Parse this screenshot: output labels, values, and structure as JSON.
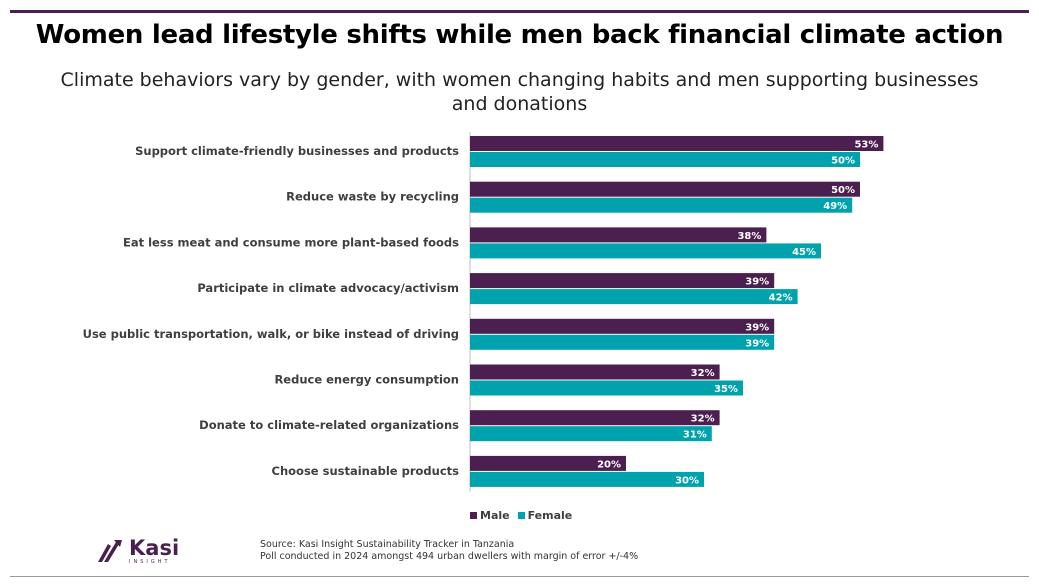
{
  "title": "Women lead lifestyle shifts while men back financial climate action",
  "subtitle": "Climate behaviors vary by gender, with women changing habits and men supporting businesses and donations",
  "chart_data": {
    "type": "bar",
    "orientation": "horizontal",
    "categories": [
      "Support climate-friendly businesses and products",
      "Reduce waste by recycling",
      "Eat less meat and consume more plant-based foods",
      "Participate in climate advocacy/activism",
      "Use public transportation, walk, or bike instead of driving",
      "Reduce energy consumption",
      "Donate to climate-related organizations",
      "Choose sustainable products"
    ],
    "series": [
      {
        "name": "Male",
        "color": "#4b1f4f",
        "values": [
          53,
          50,
          38,
          39,
          39,
          32,
          32,
          20
        ]
      },
      {
        "name": "Female",
        "color": "#00a3ad",
        "values": [
          50,
          49,
          45,
          42,
          39,
          35,
          31,
          30
        ]
      }
    ],
    "value_suffix": "%",
    "xlim": [
      0,
      100
    ],
    "grid": false,
    "legend_position": "bottom"
  },
  "legend": {
    "male": "Male",
    "female": "Female"
  },
  "logo": {
    "name": "Kasi",
    "sub": "INSIGHT"
  },
  "source": {
    "line1": "Source: Kasi Insight Sustainability Tracker in Tanzania",
    "line2": "Poll conducted in 2024 amongst 494 urban dwellers with margin of error +/-4%"
  },
  "colors": {
    "male": "#4b1f4f",
    "female": "#00a3ad",
    "accent": "#4b1f4f"
  }
}
